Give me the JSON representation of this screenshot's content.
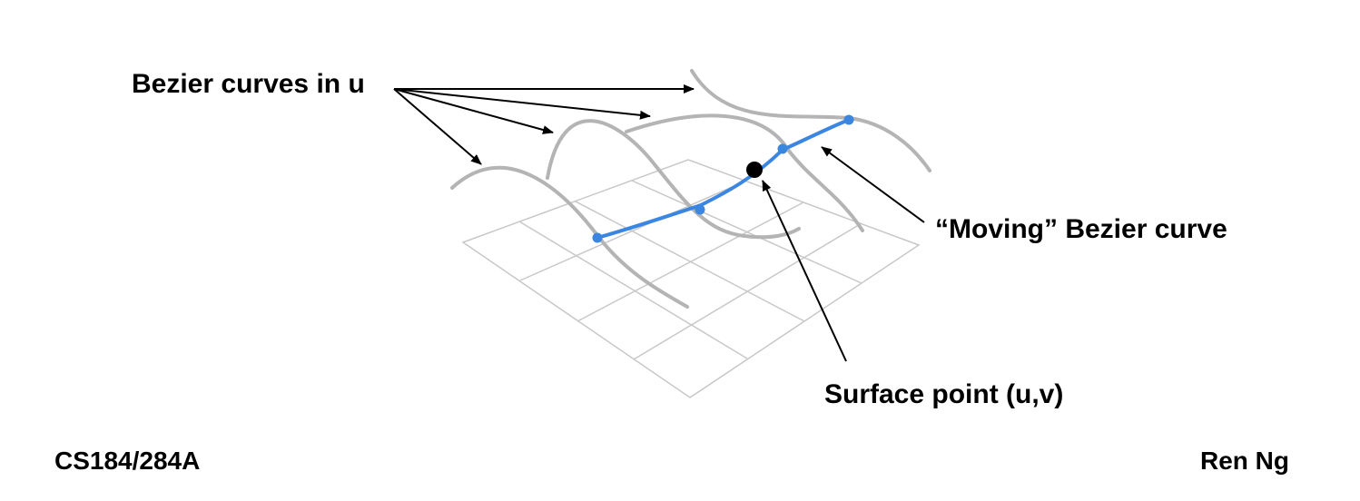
{
  "labels": {
    "bezier_curves_in_u": "Bezier curves in u",
    "moving_bezier_curve": "“Moving” Bezier curve",
    "surface_point": "Surface point (u,v)"
  },
  "footer": {
    "course": "CS184/284A",
    "author": "Ren Ng"
  },
  "colors": {
    "grid": "#c8c8c8",
    "u_curves": "#b4b4b4",
    "moving_curve": "#3b86e0",
    "surface_point": "#000000",
    "arrows": "#000000"
  }
}
